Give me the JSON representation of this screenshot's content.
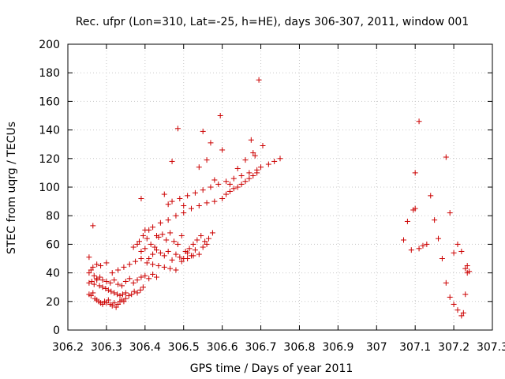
{
  "chart_data": {
    "type": "scatter",
    "title": "Rec. ufpr (Lon=310, Lat=-25, h=HE), days 306-307, 2011, window 001",
    "xlabel": "GPS time / Days of year 2011",
    "ylabel": "STEC from uqrg / TECUs",
    "xlim": [
      306.2,
      307.3
    ],
    "ylim": [
      0,
      200
    ],
    "xticks": [
      306.2,
      306.3,
      306.4,
      306.5,
      306.6,
      306.7,
      306.8,
      306.9,
      307,
      307.1,
      307.2,
      307.3
    ],
    "xtick_labels": [
      "306.2",
      "306.3",
      "306.4",
      "306.5",
      "306.6",
      "306.7",
      "306.8",
      "306.9",
      "307",
      "307.1",
      "307.2",
      "307.3"
    ],
    "yticks": [
      0,
      20,
      40,
      60,
      80,
      100,
      120,
      140,
      160,
      180,
      200
    ],
    "ytick_labels": [
      "0",
      "20",
      "40",
      "60",
      "80",
      "100",
      "120",
      "140",
      "160",
      "180",
      "200"
    ],
    "grid": true,
    "marker_color": "#cc0000",
    "series": [
      {
        "name": "STEC",
        "x": [
          306.255,
          306.26,
          306.265,
          306.27,
          306.275,
          306.28,
          306.285,
          306.29,
          306.295,
          306.3,
          306.305,
          306.31,
          306.315,
          306.32,
          306.325,
          306.33,
          306.335,
          306.34,
          306.345,
          306.35,
          306.255,
          306.262,
          306.268,
          306.275,
          306.282,
          306.29,
          306.298,
          306.305,
          306.312,
          306.32,
          306.328,
          306.335,
          306.342,
          306.35,
          306.358,
          306.365,
          306.372,
          306.38,
          306.388,
          306.395,
          306.255,
          306.26,
          306.268,
          306.275,
          306.283,
          306.29,
          306.3,
          306.31,
          306.32,
          306.33,
          306.34,
          306.35,
          306.36,
          306.37,
          306.38,
          306.39,
          306.4,
          306.41,
          306.42,
          306.43,
          306.255,
          306.265,
          306.275,
          306.285,
          306.3,
          306.315,
          306.33,
          306.345,
          306.36,
          306.375,
          306.39,
          306.405,
          306.42,
          306.435,
          306.45,
          306.465,
          306.48,
          306.495,
          306.51,
          306.525,
          306.37,
          306.38,
          306.39,
          306.4,
          306.41,
          306.42,
          306.43,
          306.44,
          306.45,
          306.46,
          306.47,
          306.48,
          306.49,
          306.5,
          306.51,
          306.52,
          306.53,
          306.54,
          306.55,
          306.56,
          306.385,
          306.395,
          306.405,
          306.415,
          306.425,
          306.435,
          306.445,
          306.455,
          306.465,
          306.475,
          306.485,
          306.495,
          306.505,
          306.515,
          306.525,
          306.535,
          306.545,
          306.555,
          306.565,
          306.575,
          306.4,
          306.42,
          306.44,
          306.46,
          306.48,
          306.5,
          306.52,
          306.54,
          306.56,
          306.58,
          306.6,
          306.61,
          306.62,
          306.63,
          306.64,
          306.65,
          306.66,
          306.67,
          306.68,
          306.69,
          306.46,
          306.47,
          306.49,
          306.51,
          306.53,
          306.55,
          306.57,
          306.59,
          306.61,
          306.63,
          306.65,
          306.67,
          306.69,
          306.7,
          306.72,
          306.735,
          306.75,
          306.685,
          306.68,
          306.6,
          306.265,
          306.39,
          306.41,
          306.43,
          306.45,
          306.47,
          306.485,
          306.5,
          306.54,
          306.56,
          306.57,
          306.58,
          306.64,
          306.66,
          306.675,
          306.695,
          306.705,
          306.595,
          306.62,
          306.55,
          307.07,
          307.08,
          307.09,
          307.095,
          307.1,
          307.11,
          307.12,
          307.13,
          307.14,
          307.15,
          307.16,
          307.17,
          307.18,
          307.19,
          307.2,
          307.21,
          307.22,
          307.23,
          307.235,
          307.24,
          307.1,
          307.11,
          307.18,
          307.19,
          307.2,
          307.21,
          307.22,
          307.225,
          307.23,
          307.235
        ],
        "y": [
          25,
          24,
          26,
          22,
          21,
          20,
          19,
          18,
          20,
          19,
          21,
          18,
          17,
          19,
          16,
          18,
          20,
          21,
          20,
          22,
          33,
          34,
          32,
          35,
          31,
          30,
          29,
          28,
          27,
          26,
          25,
          24,
          25,
          26,
          24,
          25,
          27,
          26,
          28,
          30,
          40,
          42,
          38,
          36,
          37,
          35,
          34,
          33,
          35,
          32,
          31,
          34,
          36,
          33,
          35,
          37,
          38,
          36,
          39,
          37,
          51,
          44,
          46,
          45,
          47,
          40,
          42,
          44,
          46,
          48,
          50,
          47,
          46,
          45,
          44,
          43,
          42,
          48,
          50,
          52,
          58,
          60,
          55,
          57,
          50,
          53,
          56,
          54,
          52,
          55,
          49,
          53,
          51,
          50,
          54,
          52,
          56,
          53,
          58,
          60,
          62,
          66,
          64,
          60,
          58,
          65,
          67,
          63,
          68,
          62,
          60,
          66,
          55,
          57,
          60,
          63,
          66,
          62,
          64,
          68,
          70,
          72,
          75,
          77,
          80,
          82,
          85,
          87,
          89,
          90,
          92,
          95,
          97,
          99,
          100,
          102,
          104,
          106,
          108,
          110,
          88,
          90,
          92,
          94,
          96,
          98,
          100,
          102,
          104,
          106,
          108,
          110,
          112,
          114,
          116,
          118,
          120,
          122,
          124,
          126,
          73,
          92,
          70,
          66,
          95,
          118,
          141,
          87,
          114,
          119,
          131,
          105,
          113,
          119,
          133,
          175,
          129,
          150,
          102,
          139,
          63,
          76,
          56,
          84,
          110,
          57,
          59,
          60,
          94,
          77,
          64,
          50,
          121,
          82,
          54,
          60,
          55,
          43,
          45,
          41,
          85,
          146,
          33,
          23,
          18,
          14,
          10,
          12,
          25,
          40
        ]
      }
    ]
  }
}
